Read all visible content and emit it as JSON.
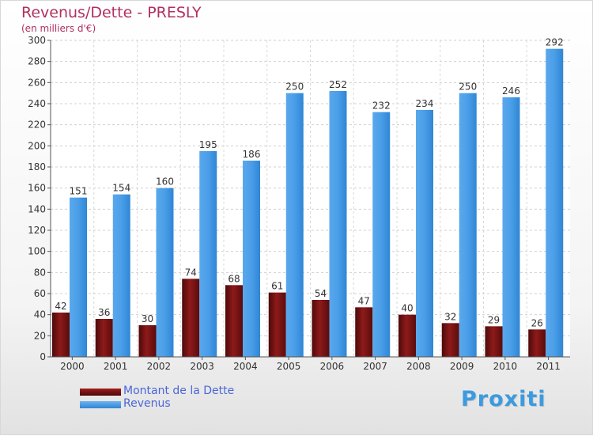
{
  "header": {
    "title": "Revenus/Dette - PRESLY",
    "subtitle": "(en milliers d'€)"
  },
  "legend": {
    "items": [
      {
        "label": "Montant de la Dette"
      },
      {
        "label": "Revenus"
      }
    ]
  },
  "brand": {
    "text": "Proxiti"
  },
  "colors": {
    "debt": "#7a1212",
    "revenue": "#3f95e0",
    "title": "#b03060",
    "legend_text": "#4a66d8"
  },
  "chart_data": {
    "type": "bar",
    "title": "Revenus/Dette - PRESLY",
    "subtitle": "(en milliers d'€)",
    "categories": [
      "2000",
      "2001",
      "2002",
      "2003",
      "2004",
      "2005",
      "2006",
      "2007",
      "2008",
      "2009",
      "2010",
      "2011"
    ],
    "series": [
      {
        "name": "Montant de la Dette",
        "values": [
          42,
          36,
          30,
          74,
          68,
          61,
          54,
          47,
          40,
          32,
          29,
          26
        ]
      },
      {
        "name": "Revenus",
        "values": [
          151,
          154,
          160,
          195,
          186,
          250,
          252,
          232,
          234,
          250,
          246,
          292
        ]
      }
    ],
    "yticks": [
      0,
      20,
      40,
      60,
      80,
      100,
      120,
      140,
      160,
      180,
      200,
      220,
      240,
      260,
      280,
      300
    ],
    "ylim": [
      0,
      300
    ],
    "grid": true,
    "legend_position": "bottom-left"
  }
}
